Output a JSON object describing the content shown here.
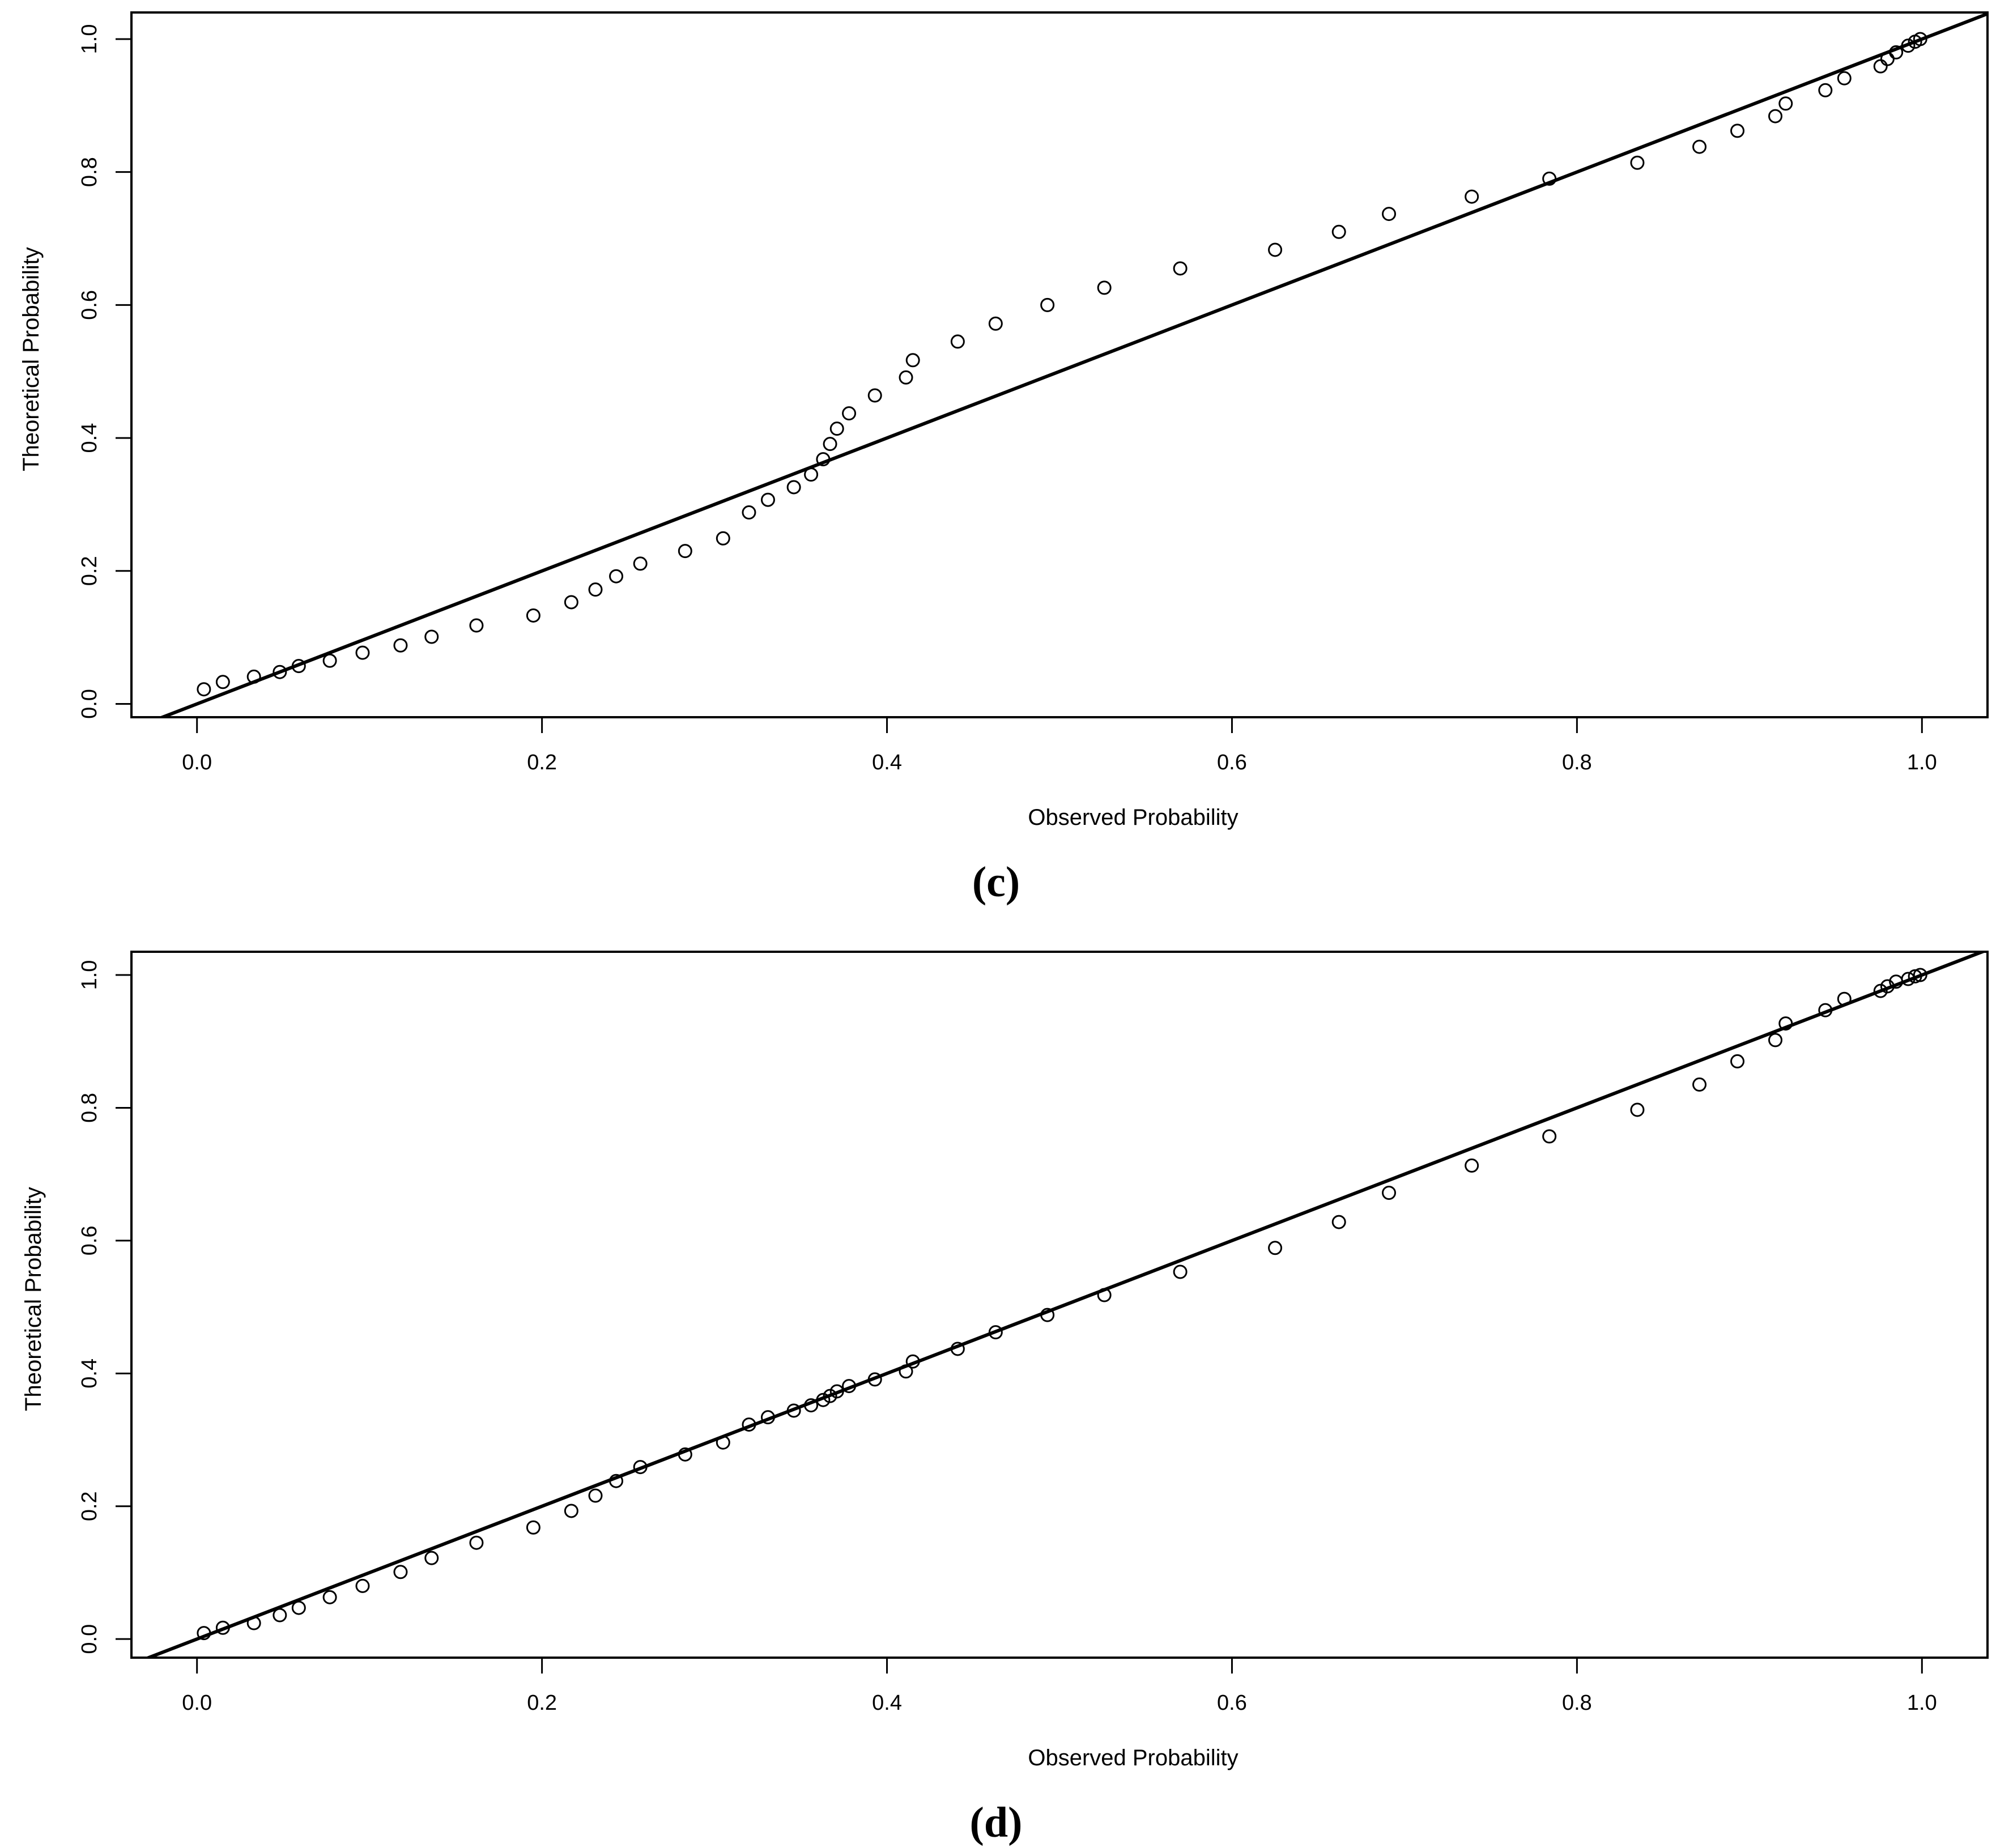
{
  "chart_data": [
    {
      "type": "scatter",
      "panel_label": "(c)",
      "xlabel": "Observed Probability",
      "ylabel": "Theoretical Probability",
      "xlim": [
        -0.038,
        1.038
      ],
      "ylim": [
        -0.02,
        1.04
      ],
      "xticks": [
        "0.0",
        "0.2",
        "0.4",
        "0.6",
        "0.8",
        "1.0"
      ],
      "yticks": [
        "0.0",
        "0.2",
        "0.4",
        "0.6",
        "0.8",
        "1.0"
      ],
      "reference_line": {
        "slope": 1,
        "intercept": 0
      },
      "grid": false,
      "points": {
        "x": [
          0.004,
          0.015,
          0.033,
          0.048,
          0.059,
          0.077,
          0.096,
          0.118,
          0.136,
          0.162,
          0.195,
          0.217,
          0.231,
          0.243,
          0.257,
          0.283,
          0.305,
          0.32,
          0.331,
          0.346,
          0.356,
          0.363,
          0.367,
          0.371,
          0.378,
          0.393,
          0.411,
          0.415,
          0.441,
          0.463,
          0.493,
          0.526,
          0.57,
          0.625,
          0.662,
          0.691,
          0.739,
          0.784,
          0.835,
          0.871,
          0.893,
          0.915,
          0.921,
          0.944,
          0.955,
          0.976,
          0.98,
          0.985,
          0.992,
          0.996,
          0.999
        ],
        "y": [
          0.022,
          0.033,
          0.041,
          0.048,
          0.057,
          0.065,
          0.077,
          0.088,
          0.101,
          0.118,
          0.133,
          0.153,
          0.172,
          0.192,
          0.211,
          0.23,
          0.249,
          0.288,
          0.307,
          0.326,
          0.345,
          0.368,
          0.391,
          0.414,
          0.437,
          0.464,
          0.491,
          0.517,
          0.545,
          0.572,
          0.6,
          0.626,
          0.655,
          0.683,
          0.71,
          0.737,
          0.763,
          0.79,
          0.814,
          0.838,
          0.862,
          0.884,
          0.903,
          0.923,
          0.941,
          0.959,
          0.97,
          0.98,
          0.99,
          0.996,
          1.0
        ]
      }
    },
    {
      "type": "scatter",
      "panel_label": "(d)",
      "xlabel": "Observed Probability",
      "ylabel": "Theoretical Probability",
      "xlim": [
        -0.038,
        1.038
      ],
      "ylim": [
        -0.028,
        1.035
      ],
      "xticks": [
        "0.0",
        "0.2",
        "0.4",
        "0.6",
        "0.8",
        "1.0"
      ],
      "yticks": [
        "0.0",
        "0.2",
        "0.4",
        "0.6",
        "0.8",
        "1.0"
      ],
      "reference_line": {
        "slope": 1,
        "intercept": 0
      },
      "grid": false,
      "points": {
        "x": [
          0.004,
          0.015,
          0.033,
          0.048,
          0.059,
          0.077,
          0.096,
          0.118,
          0.136,
          0.162,
          0.195,
          0.217,
          0.231,
          0.243,
          0.257,
          0.283,
          0.305,
          0.32,
          0.331,
          0.346,
          0.356,
          0.363,
          0.367,
          0.371,
          0.378,
          0.393,
          0.411,
          0.415,
          0.441,
          0.463,
          0.493,
          0.526,
          0.57,
          0.625,
          0.662,
          0.691,
          0.739,
          0.784,
          0.835,
          0.871,
          0.893,
          0.915,
          0.921,
          0.944,
          0.955,
          0.976,
          0.98,
          0.985,
          0.992,
          0.996,
          0.999
        ],
        "y": [
          0.009,
          0.017,
          0.024,
          0.036,
          0.047,
          0.063,
          0.08,
          0.101,
          0.122,
          0.145,
          0.168,
          0.193,
          0.216,
          0.238,
          0.259,
          0.278,
          0.296,
          0.323,
          0.334,
          0.344,
          0.352,
          0.36,
          0.366,
          0.373,
          0.381,
          0.391,
          0.403,
          0.418,
          0.437,
          0.462,
          0.488,
          0.518,
          0.553,
          0.589,
          0.628,
          0.672,
          0.713,
          0.757,
          0.797,
          0.835,
          0.87,
          0.902,
          0.927,
          0.947,
          0.964,
          0.976,
          0.983,
          0.99,
          0.994,
          0.998,
          1.0
        ]
      }
    }
  ]
}
